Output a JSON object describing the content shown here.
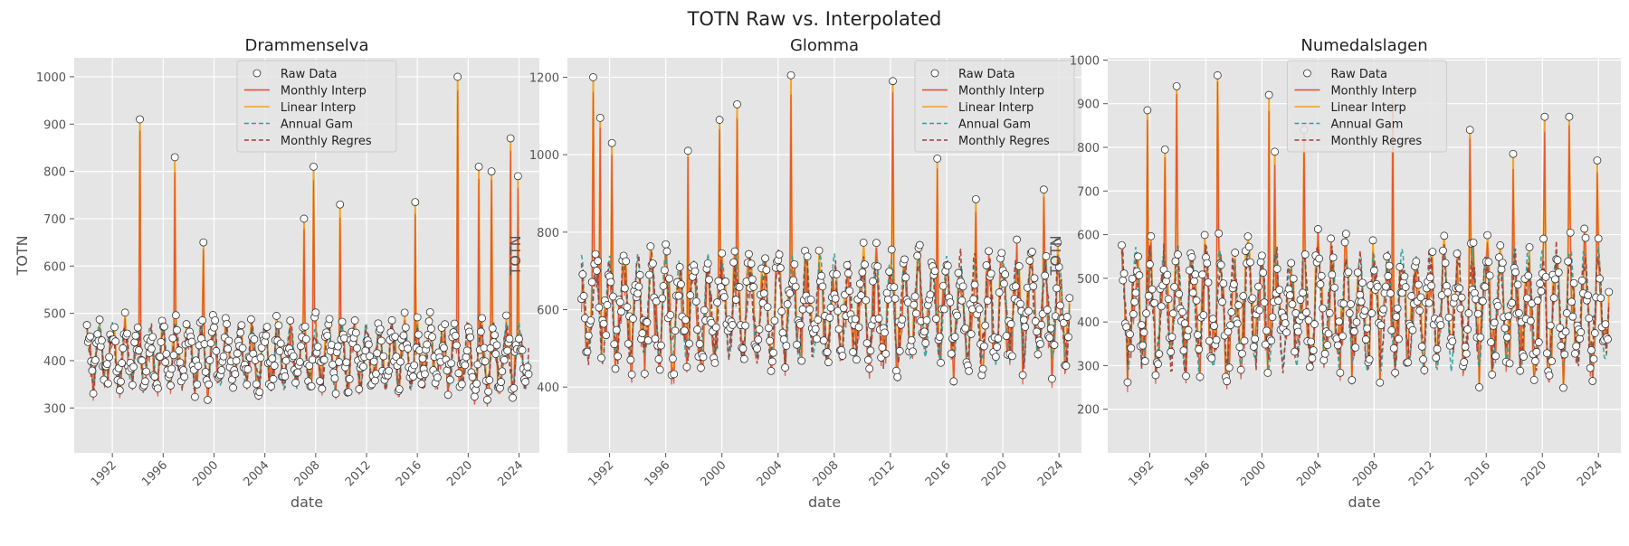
{
  "figure_title": "TOTN Raw vs. Interpolated",
  "colors": {
    "raw": "#ffffff",
    "raw_edge": "#333333",
    "monthly_interp": "#e24a33",
    "linear_interp": "#f5a01a",
    "annual_gam": "#2aa198",
    "monthly_regres": "#a23b32",
    "plot_bg": "#e5e5e5",
    "grid": "#ffffff"
  },
  "legend_labels": [
    "Raw Data",
    "Monthly Interp",
    "Linear Interp",
    "Annual Gam",
    "Monthly Regres"
  ],
  "chart_data": [
    {
      "type": "line",
      "title": "Drammenselva",
      "xlabel": "date",
      "ylabel": "TOTN",
      "xlim": [
        1989.0,
        2025.6
      ],
      "ylim": [
        205,
        1040
      ],
      "xticks": [
        1992,
        1996,
        2000,
        2004,
        2008,
        2012,
        2016,
        2020,
        2024
      ],
      "yticks": [
        300,
        400,
        500,
        600,
        700,
        800,
        900,
        1000
      ],
      "legend_position": "upper-center",
      "grid": true,
      "raw_range": [
        245,
        1000
      ],
      "base": 410,
      "amp": 75,
      "spikes": [
        [
          1994.2,
          910
        ],
        [
          1996.9,
          830
        ],
        [
          1999.2,
          650
        ],
        [
          2007.1,
          700
        ],
        [
          2007.8,
          810
        ],
        [
          2009.9,
          730
        ],
        [
          2015.8,
          735
        ],
        [
          2019.2,
          1000
        ],
        [
          2020.8,
          810
        ],
        [
          2021.8,
          800
        ],
        [
          2023.3,
          870
        ],
        [
          2023.9,
          790
        ]
      ],
      "series": [
        {
          "name": "Raw Data",
          "style": "markers"
        },
        {
          "name": "Monthly Interp",
          "style": "solid"
        },
        {
          "name": "Linear Interp",
          "style": "solid"
        },
        {
          "name": "Annual Gam",
          "style": "dashed"
        },
        {
          "name": "Monthly Regres",
          "style": "dashed"
        }
      ]
    },
    {
      "type": "line",
      "title": "Glomma",
      "xlabel": "date",
      "ylabel": "TOTN",
      "xlim": [
        1989.0,
        2025.6
      ],
      "ylim": [
        230,
        1250
      ],
      "xticks": [
        1992,
        1996,
        2000,
        2004,
        2008,
        2012,
        2016,
        2020,
        2024
      ],
      "yticks": [
        400,
        600,
        800,
        1000,
        1200
      ],
      "legend_position": "upper-right",
      "grid": true,
      "raw_range": [
        285,
        1205
      ],
      "base": 600,
      "amp": 150,
      "spikes": [
        [
          1990.8,
          1200
        ],
        [
          1991.3,
          1095
        ],
        [
          1992.2,
          1030
        ],
        [
          1997.6,
          1010
        ],
        [
          1999.8,
          1090
        ],
        [
          2001.1,
          1130
        ],
        [
          2004.9,
          1205
        ],
        [
          2012.2,
          1190
        ],
        [
          2015.3,
          990
        ],
        [
          2018.1,
          885
        ],
        [
          2022.9,
          910
        ]
      ],
      "series": [
        {
          "name": "Raw Data",
          "style": "markers"
        },
        {
          "name": "Monthly Interp",
          "style": "solid"
        },
        {
          "name": "Linear Interp",
          "style": "solid"
        },
        {
          "name": "Annual Gam",
          "style": "dashed"
        },
        {
          "name": "Monthly Regres",
          "style": "dashed"
        }
      ]
    },
    {
      "type": "line",
      "title": "Numedalslagen",
      "xlabel": "date",
      "ylabel": "TOTN",
      "xlim": [
        1989.0,
        2025.6
      ],
      "ylim": [
        100,
        1005
      ],
      "xticks": [
        1992,
        1996,
        2000,
        2004,
        2008,
        2012,
        2016,
        2020,
        2024
      ],
      "yticks": [
        200,
        300,
        400,
        500,
        600,
        700,
        800,
        900,
        1000
      ],
      "legend_position": "upper-center",
      "grid": true,
      "raw_range": [
        150,
        965
      ],
      "base": 430,
      "amp": 150,
      "spikes": [
        [
          1991.8,
          885
        ],
        [
          1993.1,
          795
        ],
        [
          1993.9,
          940
        ],
        [
          1996.8,
          965
        ],
        [
          2000.5,
          920
        ],
        [
          2000.9,
          790
        ],
        [
          2003.0,
          840
        ],
        [
          2009.3,
          935
        ],
        [
          2014.8,
          840
        ],
        [
          2017.9,
          785
        ],
        [
          2020.2,
          870
        ],
        [
          2021.9,
          870
        ],
        [
          2023.9,
          770
        ]
      ],
      "series": [
        {
          "name": "Raw Data",
          "style": "markers"
        },
        {
          "name": "Monthly Interp",
          "style": "solid"
        },
        {
          "name": "Linear Interp",
          "style": "solid"
        },
        {
          "name": "Annual Gam",
          "style": "dashed"
        },
        {
          "name": "Monthly Regres",
          "style": "dashed"
        }
      ]
    }
  ]
}
